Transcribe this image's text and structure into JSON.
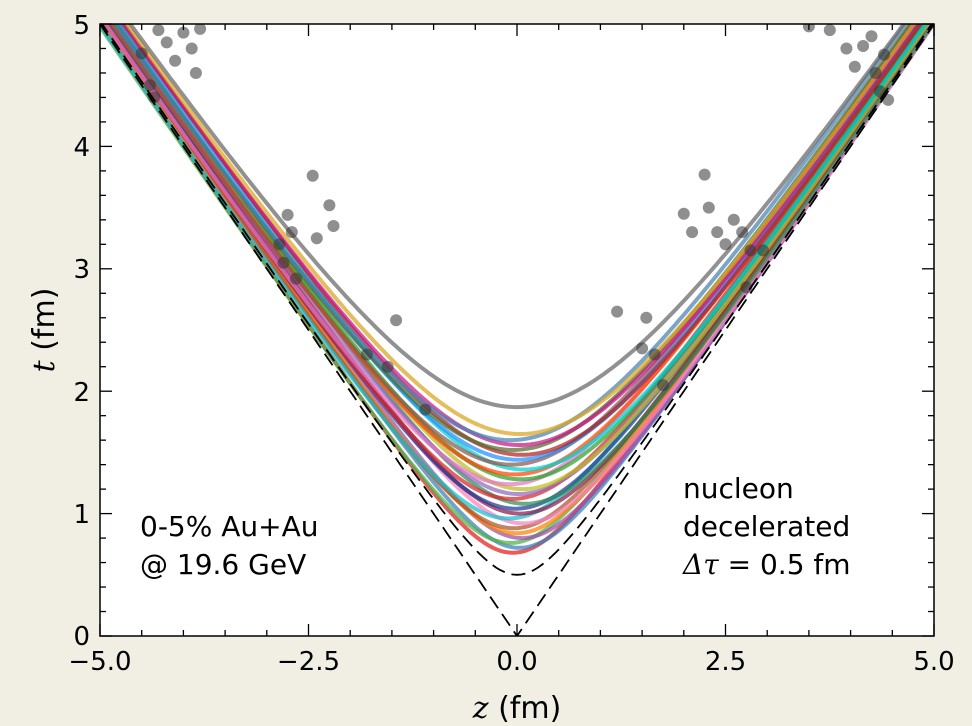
{
  "chart_data": {
    "type": "line",
    "xlabel_var": "z",
    "xlabel_unit": "(fm)",
    "ylabel_var": "t",
    "ylabel_unit": "(fm)",
    "xlim": [
      -5.0,
      5.0
    ],
    "ylim": [
      0,
      5
    ],
    "x_ticks": [
      "−5.0",
      "−2.5",
      "0.0",
      "2.5",
      "5.0"
    ],
    "y_ticks": [
      "0",
      "1",
      "2",
      "3",
      "4",
      "5"
    ],
    "grid": false,
    "annotation_left": [
      "0-5% Au+Au",
      "@ 19.6 GeV"
    ],
    "annotation_right": [
      "nucleon",
      "decelerated"
    ],
    "annotation_right_formula_symbol": "Δτ",
    "annotation_right_formula_rest": " = 0.5",
    "annotation_right_formula_unit": " fm",
    "reference_curves": [
      {
        "kind": "light-cone",
        "tau0": 0.0
      },
      {
        "kind": "hyperbola",
        "tau0": 0.5
      }
    ],
    "trajectory_tau0": [
      0.68,
      0.72,
      0.76,
      0.8,
      0.84,
      0.88,
      0.92,
      0.96,
      1.0,
      1.04,
      1.08,
      1.12,
      1.16,
      1.2,
      1.24,
      1.28,
      1.32,
      1.36,
      1.4,
      1.44,
      1.48,
      1.52,
      1.56,
      1.6,
      1.65,
      1.87
    ],
    "trajectory_offset": [
      -0.05,
      0.03,
      -0.08,
      0.06,
      0.0,
      -0.04,
      0.08,
      -0.1,
      0.04,
      -0.02,
      0.1,
      -0.06,
      0.02,
      0.07,
      -0.09,
      0.05,
      -0.03,
      0.09,
      -0.07,
      0.01,
      0.06,
      -0.05,
      0.03,
      -0.08,
      0.04,
      0.0
    ],
    "trajectory_colors": [
      "#e41a1c",
      "#377eb8",
      "#4daf4a",
      "#984ea3",
      "#ff7f00",
      "#a65628",
      "#f781bf",
      "#17becf",
      "#8b1a4a",
      "#1f3a93",
      "#2e8b57",
      "#d62728",
      "#9467bd",
      "#bcbd22",
      "#e377c2",
      "#2ca02c",
      "#ff4500",
      "#00ced1",
      "#8c564b",
      "#1e90ff",
      "#b22222",
      "#556b2f",
      "#c71585",
      "#4682b4",
      "#daa520",
      "#666666"
    ],
    "points_shown": [
      [
        -4.5,
        4.76
      ],
      [
        -4.4,
        4.5
      ],
      [
        -4.35,
        4.4
      ],
      [
        -4.3,
        4.95
      ],
      [
        -4.2,
        4.85
      ],
      [
        -4.1,
        4.7
      ],
      [
        -4.0,
        4.93
      ],
      [
        -3.9,
        4.8
      ],
      [
        -3.8,
        4.96
      ],
      [
        -3.85,
        4.6
      ],
      [
        -2.85,
        3.2
      ],
      [
        -2.8,
        3.05
      ],
      [
        -2.75,
        3.44
      ],
      [
        -2.7,
        3.3
      ],
      [
        -2.65,
        2.92
      ],
      [
        -2.45,
        3.76
      ],
      [
        -2.4,
        3.25
      ],
      [
        -2.25,
        3.52
      ],
      [
        -2.2,
        3.35
      ],
      [
        -1.8,
        2.3
      ],
      [
        -1.55,
        2.2
      ],
      [
        -1.45,
        2.58
      ],
      [
        -1.1,
        1.85
      ],
      [
        1.2,
        2.65
      ],
      [
        1.5,
        2.35
      ],
      [
        1.55,
        2.6
      ],
      [
        1.65,
        2.3
      ],
      [
        1.75,
        2.05
      ],
      [
        2.0,
        3.45
      ],
      [
        2.1,
        3.3
      ],
      [
        2.25,
        3.77
      ],
      [
        2.3,
        3.5
      ],
      [
        2.4,
        3.3
      ],
      [
        2.5,
        3.2
      ],
      [
        2.6,
        3.4
      ],
      [
        2.7,
        3.3
      ],
      [
        2.75,
        2.85
      ],
      [
        2.8,
        3.15
      ],
      [
        2.95,
        3.15
      ],
      [
        3.5,
        4.98
      ],
      [
        3.75,
        4.95
      ],
      [
        3.95,
        4.8
      ],
      [
        4.05,
        4.65
      ],
      [
        4.15,
        4.82
      ],
      [
        4.25,
        4.9
      ],
      [
        4.3,
        4.6
      ],
      [
        4.35,
        4.45
      ],
      [
        4.4,
        4.75
      ],
      [
        4.45,
        4.38
      ]
    ],
    "point_color": "#333333"
  }
}
